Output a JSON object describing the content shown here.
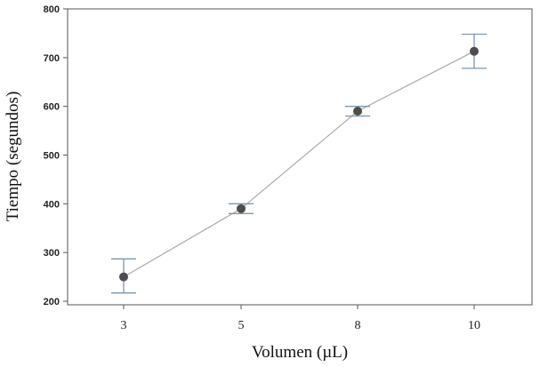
{
  "chart_data": {
    "type": "line",
    "title": "",
    "xlabel": "Volumen (µL)",
    "ylabel": "Tiempo (segundos)",
    "categories": [
      "3",
      "5",
      "8",
      "10"
    ],
    "ylim": [
      200,
      800
    ],
    "yticks": [
      200,
      300,
      400,
      500,
      600,
      700,
      800
    ],
    "grid": false,
    "series": [
      {
        "values": [
          250,
          390,
          590,
          713
        ],
        "error_low": [
          217,
          380,
          580,
          678
        ],
        "error_high": [
          287,
          400,
          600,
          748
        ]
      }
    ],
    "colors": {
      "line": "#a9a9a9",
      "marker": "#4d4d4d",
      "errorbar": "#7b96b0",
      "axis": "#555555"
    }
  }
}
